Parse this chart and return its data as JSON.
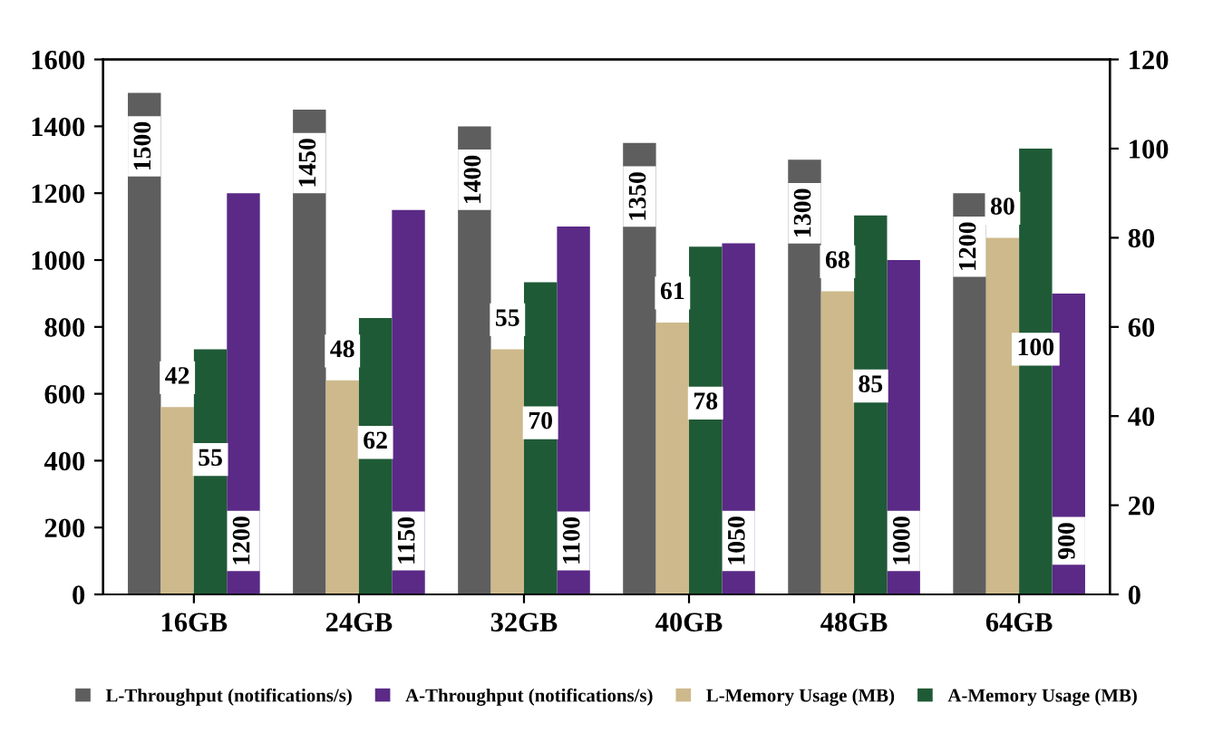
{
  "chart_data": {
    "type": "bar",
    "categories": [
      "16GB",
      "24GB",
      "32GB",
      "40GB",
      "48GB",
      "64GB"
    ],
    "series": [
      {
        "name": "L-Throughput (notifications/s)",
        "color": "#5e5e5e",
        "values": [
          1500,
          1450,
          1400,
          1350,
          1300,
          1200
        ]
      },
      {
        "name": "A-Throughput (notifications/s)",
        "color": "#5a2a86",
        "values": [
          1200,
          1150,
          1100,
          1050,
          1000,
          900
        ]
      },
      {
        "name": "L-Memory Usage (MB)",
        "color": "#cdb98c",
        "values": [
          42,
          48,
          55,
          61,
          68,
          80
        ],
        "axis": "y2"
      },
      {
        "name": "A-Memory Usage (MB)",
        "color": "#1f5a36",
        "values": [
          55,
          62,
          70,
          78,
          85,
          100
        ],
        "axis": "y2"
      }
    ],
    "ylim": [
      0,
      1600
    ],
    "yticks": [
      0,
      200,
      400,
      600,
      800,
      1000,
      1200,
      1400,
      1600
    ],
    "y2lim": [
      0,
      120
    ],
    "y2ticks": [
      0,
      20,
      40,
      60,
      80,
      100,
      120
    ],
    "data_labels": true,
    "grid": false,
    "legend": "bottom"
  }
}
